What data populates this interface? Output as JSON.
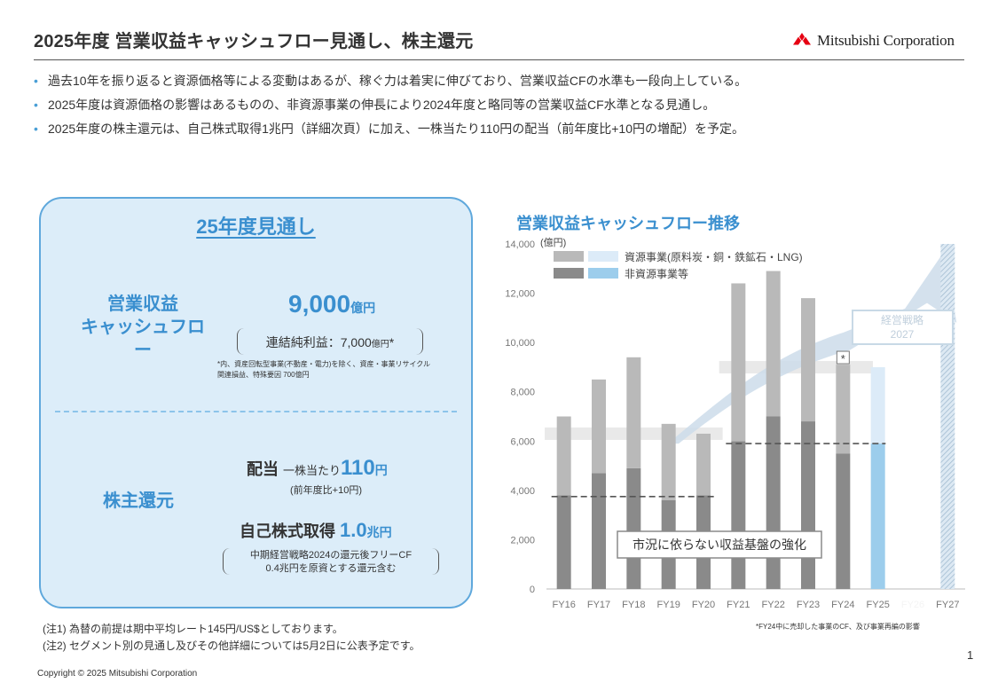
{
  "header": {
    "title": "2025年度 営業収益キャッシュフロー見通し、株主還元",
    "brand": "Mitsubishi Corporation",
    "accent": "#3a8fcf",
    "brand_red": "#e60012"
  },
  "bullets": [
    "過去10年を振り返ると資源価格等による変動はあるが、稼ぐ力は着実に伸びており、営業収益CFの水準も一段向上している。",
    "2025年度は資源価格の影響はあるものの、非資源事業の伸長により2024年度と略同等の営業収益CF水準となる見通し。",
    "2025年度の株主還元は、自己株式取得1兆円（詳細次頁）に加え、一株当たり110円の配当（前年度比+10円の増配）を予定。"
  ],
  "panel": {
    "title": "25年度見通し",
    "ocf_label_1": "営業収益",
    "ocf_label_2": "キャッシュフロー",
    "ocf_value": "9,000",
    "ocf_unit": "億円",
    "net_income_label": "連結純利益：7,000",
    "net_income_unit": "億円",
    "net_income_mark": "*",
    "note_1": "*内、資産回転型事業(不動産・電力)を除く、資産・事業リサイクル",
    "note_2": "関連損益、特殊要因  700億円",
    "shareholder_label": "株主還元",
    "dividend_label": "配当",
    "dividend_per_share": "一株当たり",
    "dividend_value": "110",
    "dividend_unit": "円",
    "dividend_change": "(前年度比+10円)",
    "buyback_label": "自己株式取得",
    "buyback_value": "1.0",
    "buyback_unit": "兆円",
    "buyback_note_1": "中期経営戦略2024の還元後フリーCF",
    "buyback_note_2": "0.4兆円を原資とする還元含む"
  },
  "notes": [
    "(注1) 為替の前提は期中平均レート145円/US$としております。",
    "(注2) セグメント別の見通し及びその他詳細については5月2日に公表予定です。"
  ],
  "copyright": "Copyright © 2025 Mitsubishi Corporation",
  "page_number": "1",
  "chart_data": {
    "type": "bar",
    "stacked": true,
    "title": "営業収益キャッシュフロー推移",
    "ylabel": "(億円)",
    "ylim": [
      0,
      14000
    ],
    "yticks": [
      0,
      2000,
      4000,
      6000,
      8000,
      10000,
      12000,
      14000
    ],
    "ytick_labels": [
      "0",
      "2,000",
      "4,000",
      "6,000",
      "8,000",
      "10,000",
      "12,000",
      "14,000"
    ],
    "categories": [
      "FY16",
      "FY17",
      "FY18",
      "FY19",
      "FY20",
      "FY21",
      "FY22",
      "FY23",
      "FY24",
      "FY25",
      "FY26",
      "FY27"
    ],
    "series": [
      {
        "name": "非資源事業等",
        "values": [
          3800,
          4700,
          4900,
          3600,
          3800,
          6000,
          7000,
          6800,
          5500,
          5900,
          null,
          null
        ]
      },
      {
        "name": "資源事業(原料炭・銅・鉄鉱石・LNG)",
        "values": [
          3200,
          3800,
          4500,
          3100,
          2500,
          6400,
          5900,
          5000,
          3600,
          3100,
          null,
          null
        ]
      }
    ],
    "legend": [
      "資源事業(原料炭・銅・鉄鉱石・LNG)",
      "非資源事業等"
    ],
    "legend_position": "top-left",
    "forecast_category": "FY25",
    "target_category": "FY27",
    "dashed_levels": [
      {
        "from": "FY16",
        "to": "FY20",
        "value": 3750
      },
      {
        "from": "FY21",
        "to": "FY24",
        "value": 5900
      }
    ],
    "band_levels": [
      {
        "from": "FY16",
        "to": "FY20",
        "value": 6300
      },
      {
        "from": "FY21",
        "to": "FY24",
        "value": 9000
      }
    ],
    "annotations": {
      "strategy_label_1": "経営戦略",
      "strategy_label_2": "2027",
      "base_label": "市況に依らない収益基盤の強化",
      "fy24_mark": "*",
      "footnote": "*FY24中に売却した事業のCF、及び事業再編の影響"
    },
    "colors": {
      "resource": "#b9b9b9",
      "non_resource": "#8a8a8a",
      "resource_fc": "#dcebf8",
      "non_resource_fc": "#9ccdec",
      "arrow": "#ccdcea"
    }
  }
}
